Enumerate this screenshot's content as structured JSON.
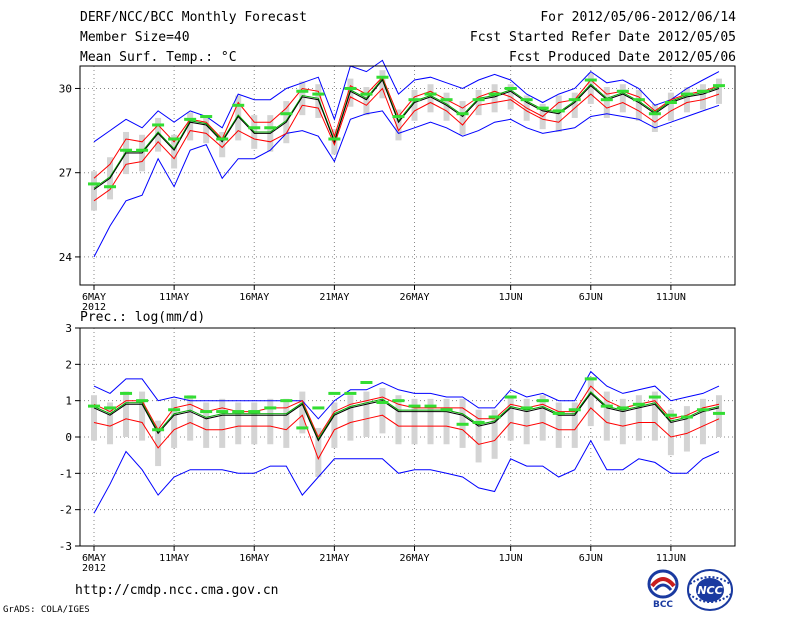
{
  "header": {
    "title": "DERF/NCC/BCC Monthly Forecast",
    "member_size": "Member Size=40",
    "variable": "Mean Surf. Temp.: °C",
    "period": "For 2012/05/06-2012/06/14",
    "start_refer": "Fcst Started Refer Date 2012/05/05",
    "produced": "Fcst Produced Date 2012/05/06"
  },
  "footer": {
    "url": "http://cmdp.ncc.cma.gov.cn",
    "grads": "GrADS: COLA/IGES",
    "logo_bcc": "BCC",
    "logo_ncc": "NCC"
  },
  "colors": {
    "envelope": "#0000ff",
    "mean": "#000000",
    "median": "#00aa00",
    "band": "#ff0000",
    "box": "#d4d4d4",
    "green_mark": "#33dd33"
  },
  "chart_data": [
    {
      "type": "line",
      "title": "Mean Surf. Temp.: °C",
      "x_tick_labels": [
        "6MAY\n2012",
        "11MAY",
        "16MAY",
        "21MAY",
        "26MAY",
        "1JUN",
        "6JUN",
        "11JUN"
      ],
      "x_tick_days": [
        0,
        5,
        10,
        15,
        20,
        26,
        31,
        36
      ],
      "ylim": [
        23,
        30.8
      ],
      "yticks": [
        24,
        27,
        30
      ],
      "days": 40,
      "series": [
        {
          "name": "max",
          "values": [
            28.1,
            28.5,
            28.9,
            28.6,
            29.2,
            28.8,
            29.2,
            29.0,
            28.6,
            29.8,
            29.6,
            29.6,
            30.0,
            30.2,
            30.4,
            28.9,
            30.8,
            30.6,
            31.0,
            29.8,
            30.3,
            30.4,
            30.2,
            30.0,
            30.3,
            30.5,
            30.3,
            29.8,
            29.5,
            29.8,
            30.0,
            30.6,
            30.2,
            30.3,
            30.0,
            29.4,
            29.6,
            30.0,
            30.3,
            30.6
          ]
        },
        {
          "name": "upper",
          "values": [
            26.8,
            27.3,
            28.2,
            28.1,
            28.7,
            28.1,
            28.9,
            28.8,
            28.2,
            29.5,
            28.8,
            28.8,
            29.3,
            30.0,
            29.9,
            28.3,
            30.1,
            29.8,
            30.4,
            29.0,
            29.7,
            29.9,
            29.6,
            29.3,
            29.7,
            29.9,
            29.7,
            29.3,
            29.0,
            29.5,
            29.6,
            30.3,
            29.8,
            29.9,
            29.7,
            29.2,
            29.6,
            29.8,
            29.9,
            30.1
          ]
        },
        {
          "name": "mean",
          "values": [
            26.4,
            26.8,
            27.7,
            27.7,
            28.4,
            27.8,
            28.8,
            28.7,
            28.1,
            29.0,
            28.4,
            28.4,
            28.8,
            29.7,
            29.6,
            28.1,
            29.9,
            29.6,
            30.3,
            28.8,
            29.5,
            29.7,
            29.4,
            29.0,
            29.6,
            29.7,
            29.9,
            29.5,
            29.2,
            29.1,
            29.5,
            30.1,
            29.6,
            29.8,
            29.5,
            29.1,
            29.5,
            29.7,
            29.8,
            30.0
          ]
        },
        {
          "name": "lower",
          "values": [
            26.0,
            26.4,
            27.3,
            27.4,
            28.1,
            27.5,
            28.5,
            28.4,
            27.9,
            28.5,
            28.2,
            28.1,
            28.4,
            29.4,
            29.3,
            28.0,
            29.7,
            29.4,
            30.0,
            28.5,
            29.2,
            29.5,
            29.2,
            28.7,
            29.4,
            29.5,
            29.6,
            29.2,
            28.9,
            28.8,
            29.3,
            29.8,
            29.3,
            29.5,
            29.2,
            28.8,
            29.2,
            29.5,
            29.6,
            29.8
          ]
        },
        {
          "name": "min",
          "values": [
            24.0,
            25.1,
            26.0,
            26.2,
            27.5,
            26.5,
            27.8,
            28.0,
            26.8,
            27.5,
            27.5,
            27.8,
            28.4,
            28.5,
            28.3,
            27.4,
            28.9,
            29.1,
            29.2,
            28.4,
            28.6,
            28.8,
            28.6,
            28.3,
            28.5,
            28.8,
            28.9,
            28.6,
            28.4,
            28.5,
            28.6,
            29.0,
            29.1,
            29.0,
            28.9,
            28.6,
            28.8,
            29.0,
            29.2,
            29.4
          ]
        },
        {
          "name": "median_marks",
          "values": [
            26.6,
            26.5,
            27.8,
            27.8,
            28.7,
            28.2,
            28.9,
            29.0,
            28.2,
            29.4,
            28.6,
            28.6,
            29.1,
            29.9,
            29.8,
            28.2,
            30.0,
            29.8,
            30.4,
            29.0,
            29.6,
            29.8,
            29.6,
            29.1,
            29.6,
            29.8,
            30.0,
            29.6,
            29.3,
            29.2,
            29.6,
            30.3,
            29.6,
            29.9,
            29.6,
            29.1,
            29.5,
            29.8,
            29.9,
            30.1
          ]
        }
      ]
    },
    {
      "type": "line",
      "title": "Prec.: log(mm/d)",
      "x_tick_labels": [
        "6MAY\n2012",
        "11MAY",
        "16MAY",
        "21MAY",
        "26MAY",
        "1JUN",
        "6JUN",
        "11JUN"
      ],
      "x_tick_days": [
        0,
        5,
        10,
        15,
        20,
        26,
        31,
        36
      ],
      "ylim": [
        -3,
        3
      ],
      "yticks": [
        -3,
        -2,
        -1,
        0,
        1,
        2,
        3
      ],
      "days": 40,
      "series": [
        {
          "name": "max",
          "values": [
            1.4,
            1.2,
            1.6,
            1.6,
            1.0,
            1.1,
            1.0,
            1.0,
            1.0,
            1.0,
            1.0,
            1.0,
            1.0,
            1.0,
            0.5,
            1.0,
            1.3,
            1.3,
            1.5,
            1.3,
            1.2,
            1.2,
            1.1,
            1.1,
            0.8,
            0.8,
            1.3,
            1.1,
            1.2,
            1.0,
            1.0,
            1.8,
            1.4,
            1.2,
            1.3,
            1.4,
            1.0,
            1.1,
            1.2,
            1.4
          ]
        },
        {
          "name": "upper",
          "values": [
            0.9,
            0.7,
            1.0,
            1.0,
            0.2,
            0.8,
            0.9,
            0.7,
            0.8,
            0.7,
            0.7,
            0.8,
            0.8,
            1.0,
            0.0,
            0.7,
            0.9,
            1.0,
            1.1,
            0.9,
            0.8,
            0.8,
            0.8,
            0.8,
            0.5,
            0.5,
            0.9,
            0.8,
            0.9,
            0.7,
            0.7,
            1.4,
            1.0,
            0.8,
            0.9,
            1.0,
            0.5,
            0.6,
            0.8,
            0.9
          ]
        },
        {
          "name": "mean",
          "values": [
            0.8,
            0.6,
            0.9,
            0.9,
            0.1,
            0.6,
            0.7,
            0.5,
            0.6,
            0.6,
            0.6,
            0.6,
            0.6,
            0.9,
            -0.1,
            0.6,
            0.8,
            0.9,
            1.0,
            0.7,
            0.7,
            0.7,
            0.7,
            0.6,
            0.3,
            0.4,
            0.8,
            0.7,
            0.8,
            0.6,
            0.6,
            1.2,
            0.8,
            0.7,
            0.8,
            0.9,
            0.4,
            0.5,
            0.7,
            0.8
          ]
        },
        {
          "name": "lower",
          "values": [
            0.4,
            0.3,
            0.5,
            0.4,
            -0.3,
            0.2,
            0.4,
            0.2,
            0.2,
            0.3,
            0.3,
            0.3,
            0.2,
            0.6,
            -0.6,
            0.2,
            0.4,
            0.5,
            0.6,
            0.3,
            0.3,
            0.3,
            0.3,
            0.2,
            -0.2,
            -0.1,
            0.4,
            0.3,
            0.4,
            0.2,
            0.2,
            0.8,
            0.4,
            0.3,
            0.4,
            0.4,
            0.0,
            0.1,
            0.3,
            0.5
          ]
        },
        {
          "name": "min",
          "values": [
            -2.1,
            -1.3,
            -0.4,
            -0.9,
            -1.6,
            -1.1,
            -0.9,
            -0.9,
            -0.9,
            -1.0,
            -1.0,
            -0.8,
            -0.8,
            -1.6,
            -1.1,
            -0.6,
            -0.6,
            -0.6,
            -0.6,
            -1.0,
            -0.9,
            -0.9,
            -1.0,
            -1.1,
            -1.4,
            -1.5,
            -0.6,
            -0.8,
            -0.8,
            -1.1,
            -0.9,
            -0.1,
            -0.9,
            -0.9,
            -0.6,
            -0.7,
            -1.0,
            -1.0,
            -0.6,
            -0.4
          ]
        },
        {
          "name": "median_marks",
          "values": [
            0.85,
            0.8,
            1.2,
            1.0,
            0.2,
            0.75,
            1.1,
            0.7,
            0.7,
            0.7,
            0.7,
            0.8,
            1.0,
            0.25,
            0.8,
            1.2,
            1.2,
            1.5,
            0.95,
            1.0,
            0.85,
            0.85,
            0.75,
            0.35,
            0.4,
            0.55,
            1.1,
            0.8,
            1.0,
            0.65,
            0.75,
            1.6,
            0.85,
            0.8,
            0.9,
            1.1,
            0.6,
            0.55,
            0.75,
            0.65
          ]
        }
      ]
    }
  ]
}
